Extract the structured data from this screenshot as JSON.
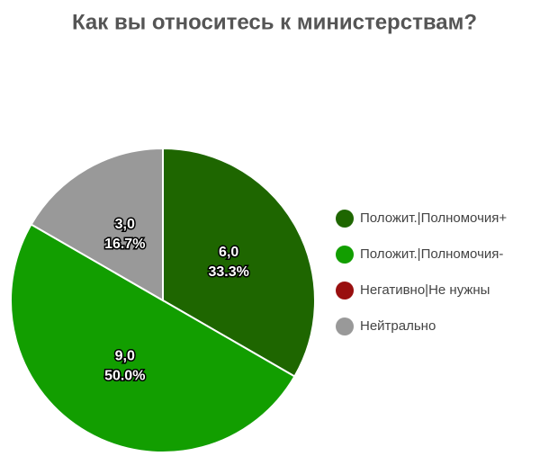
{
  "chart_data": {
    "type": "pie",
    "title": "Как вы относитесь к министерствам?",
    "categories": [
      "Положит.|Полномочия+",
      "Положит.|Полномочия-",
      "Негативно|Не нужны",
      "Нейтрально"
    ],
    "values": [
      6,
      9,
      0,
      3
    ],
    "value_labels": [
      "6,0",
      "9,0",
      null,
      "3,0"
    ],
    "percent_labels": [
      "33.3%",
      "50.0%",
      null,
      "16.7%"
    ],
    "colors": [
      "#1e6600",
      "#129e00",
      "#990f0f",
      "#999999"
    ],
    "legend": "right"
  }
}
